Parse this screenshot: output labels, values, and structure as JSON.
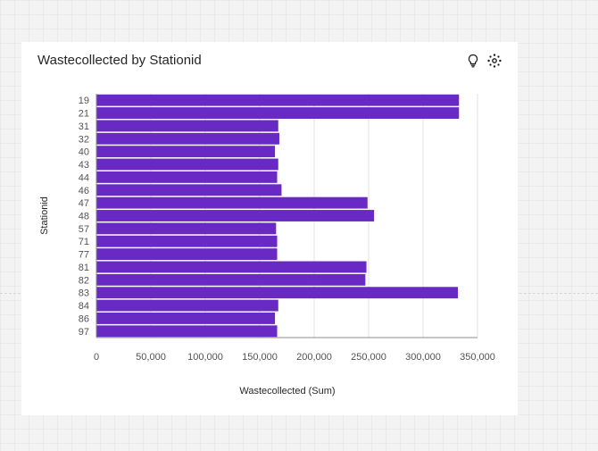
{
  "card": {
    "title": "Wastecollected by Stationid",
    "icons": [
      "lightbulb-icon",
      "settings-icon"
    ]
  },
  "chart_data": {
    "type": "bar",
    "orientation": "horizontal",
    "title": "Wastecollected by Stationid",
    "xlabel": "Wastecollected (Sum)",
    "ylabel": "Stationid",
    "categories": [
      "19",
      "21",
      "31",
      "32",
      "40",
      "43",
      "44",
      "46",
      "47",
      "48",
      "57",
      "71",
      "77",
      "81",
      "82",
      "83",
      "84",
      "86",
      "97"
    ],
    "values": [
      333000,
      333000,
      167000,
      168000,
      164000,
      167000,
      166000,
      170000,
      249000,
      255000,
      165000,
      166000,
      166000,
      248000,
      247000,
      332000,
      167000,
      164000,
      166000
    ],
    "xlim": [
      0,
      350000
    ],
    "x_ticks": [
      0,
      50000,
      100000,
      150000,
      200000,
      250000,
      300000,
      350000
    ],
    "x_tick_labels": [
      "0",
      "50,000",
      "100,000",
      "150,000",
      "200,000",
      "250,000",
      "300,000",
      "350,000"
    ],
    "grid": true,
    "bar_color": "#6929c4"
  }
}
